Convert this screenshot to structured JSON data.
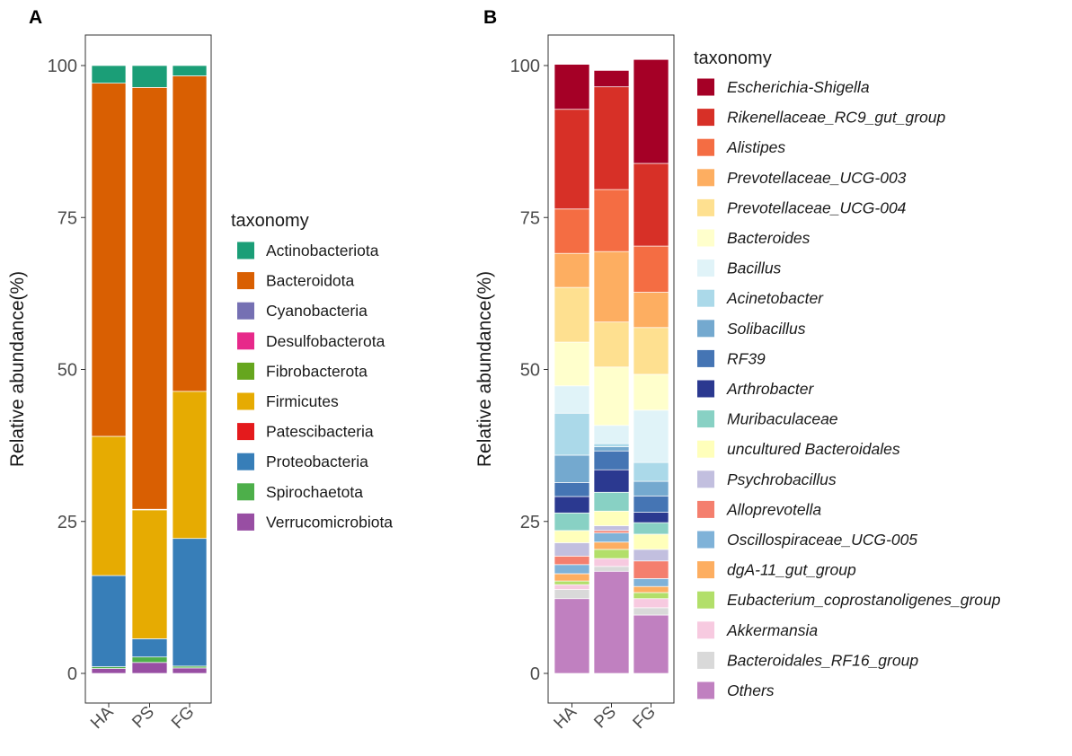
{
  "chart_data": [
    {
      "type": "bar",
      "stacked": true,
      "panel_label": "A",
      "title": "",
      "xlabel": "",
      "ylabel": "Relative abundance(%)",
      "ylim": [
        0,
        100
      ],
      "yticks": [
        "0",
        "25",
        "50",
        "75",
        "100"
      ],
      "grid": false,
      "legend_title": "taxonomy",
      "legend_italic": false,
      "categories": [
        "HA",
        "PS",
        "FG"
      ],
      "series": [
        {
          "name": "Verrucomicrobiota",
          "color": "#984EA3",
          "values": [
            0.8,
            1.8,
            0.9
          ]
        },
        {
          "name": "Spirochaetota",
          "color": "#4DAF4A",
          "values": [
            0.3,
            0.9,
            0.3
          ]
        },
        {
          "name": "Proteobacteria",
          "color": "#377EB8",
          "values": [
            15.0,
            3.0,
            21.0
          ]
        },
        {
          "name": "Patescibacteria",
          "color": "#E41A1C",
          "values": [
            0.0,
            0.0,
            0.0
          ]
        },
        {
          "name": "Firmicutes",
          "color": "#E6AB02",
          "values": [
            22.9,
            21.2,
            24.2
          ]
        },
        {
          "name": "Fibrobacterota",
          "color": "#66A61E",
          "values": [
            0.0,
            0.1,
            0.0
          ]
        },
        {
          "name": "Desulfobacterota",
          "color": "#E7298A",
          "values": [
            0.0,
            0.0,
            0.0
          ]
        },
        {
          "name": "Cyanobacteria",
          "color": "#7570B3",
          "values": [
            0.0,
            0.0,
            0.0
          ]
        },
        {
          "name": "Bacteroidota",
          "color": "#D95F02",
          "values": [
            58.1,
            69.4,
            51.9
          ]
        },
        {
          "name": "Actinobacteriota",
          "color": "#1B9E77",
          "values": [
            2.9,
            3.6,
            1.7
          ]
        }
      ]
    },
    {
      "type": "bar",
      "stacked": true,
      "panel_label": "B",
      "title": "",
      "xlabel": "",
      "ylabel": "Relative abundance(%)",
      "ylim": [
        0,
        100
      ],
      "yticks": [
        "0",
        "25",
        "50",
        "75",
        "100"
      ],
      "grid": false,
      "legend_title": "taxonomy",
      "legend_italic": true,
      "categories": [
        "HA",
        "PS",
        "FG"
      ],
      "series": [
        {
          "name": "Others",
          "color": "#C080C0",
          "values": [
            12.3,
            16.8,
            9.6
          ]
        },
        {
          "name": "Bacteroidales_RF16_group",
          "color": "#D9D9D9",
          "values": [
            1.5,
            0.8,
            1.2
          ]
        },
        {
          "name": "Akkermansia",
          "color": "#F7CAE0",
          "values": [
            0.8,
            1.3,
            1.5
          ]
        },
        {
          "name": "Eubacterium_coprostanoligenes_group",
          "color": "#B2DF6A",
          "values": [
            0.6,
            1.5,
            1.0
          ]
        },
        {
          "name": "dgA-11_gut_group",
          "color": "#FDAE61",
          "values": [
            1.2,
            1.2,
            1.0
          ]
        },
        {
          "name": "Oscillospiraceae_UCG-005",
          "color": "#7FB2D8",
          "values": [
            1.5,
            1.5,
            1.3
          ]
        },
        {
          "name": "Alloprevotella",
          "color": "#F47F6E",
          "values": [
            1.4,
            0.4,
            2.9
          ]
        },
        {
          "name": "Psychrobacillus",
          "color": "#C2BFDF",
          "values": [
            2.2,
            0.8,
            1.9
          ]
        },
        {
          "name": "uncultured Bacteroidales",
          "color": "#FFFFBB",
          "values": [
            2.0,
            2.4,
            2.5
          ]
        },
        {
          "name": "Muribaculaceae",
          "color": "#88D1C4",
          "values": [
            2.9,
            3.1,
            1.9
          ]
        },
        {
          "name": "Arthrobacter",
          "color": "#2B3990",
          "values": [
            2.7,
            3.7,
            1.7
          ]
        },
        {
          "name": "RF39",
          "color": "#4575B4",
          "values": [
            2.3,
            3.1,
            2.7
          ]
        },
        {
          "name": "Solibacillus",
          "color": "#74A9CF",
          "values": [
            4.5,
            0.7,
            2.4
          ]
        },
        {
          "name": "Acinetobacter",
          "color": "#ABD9E9",
          "values": [
            6.9,
            0.5,
            3.1
          ]
        },
        {
          "name": "Bacillus",
          "color": "#E0F3F8",
          "values": [
            4.5,
            3.0,
            8.6
          ]
        },
        {
          "name": "Bacteroides",
          "color": "#FFFFCC",
          "values": [
            7.2,
            9.6,
            5.9
          ]
        },
        {
          "name": "Prevotellaceae_UCG-004",
          "color": "#FEE090",
          "values": [
            9.0,
            7.4,
            7.7
          ]
        },
        {
          "name": "Prevotellaceae_UCG-003",
          "color": "#FDAE61",
          "values": [
            5.6,
            11.6,
            5.8
          ]
        },
        {
          "name": "Alistipes",
          "color": "#F46D43",
          "values": [
            7.3,
            10.2,
            7.6
          ]
        },
        {
          "name": "Rikenellaceae_RC9_gut_group",
          "color": "#D73027",
          "values": [
            16.4,
            16.9,
            13.6
          ]
        },
        {
          "name": "Escherichia-Shigella",
          "color": "#A50026",
          "values": [
            7.4,
            2.7,
            17.1
          ]
        }
      ]
    }
  ]
}
